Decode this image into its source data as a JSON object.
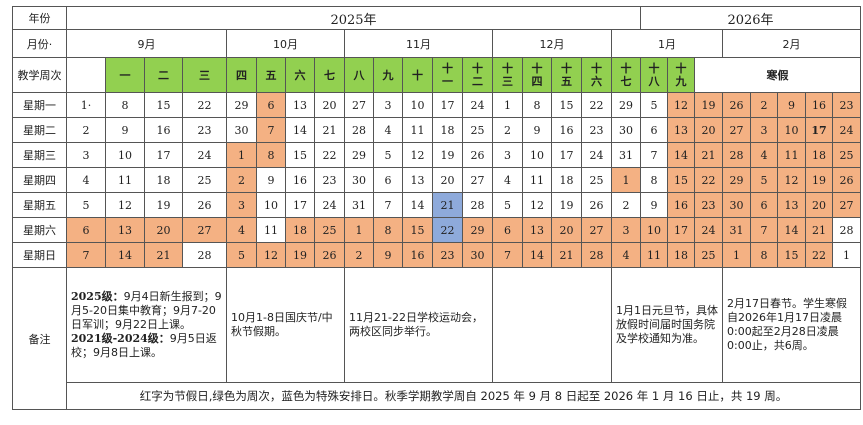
{
  "header": {
    "year_label": "年份",
    "month_label": "月份·",
    "week_label": "教学周次",
    "years": [
      "2025年",
      "2026年"
    ],
    "months": [
      "9月",
      "10月",
      "11月",
      "12月",
      "1月",
      "2月"
    ],
    "weeks": [
      "一",
      "二",
      "三",
      "四",
      "五",
      "六",
      "七",
      "八",
      "九",
      "十",
      "十\n一",
      "十\n二",
      "十\n三",
      "十\n四",
      "十\n五",
      "十\n六",
      "十\n七",
      "十\n八",
      "十\n九"
    ],
    "winter_break": "寒假"
  },
  "rows": [
    {
      "label": "星期一",
      "cells": [
        "1·",
        "8",
        "15",
        "22",
        "29",
        "6",
        "13",
        "20",
        "27",
        "3",
        "10",
        "17",
        "24",
        "1",
        "8",
        "15",
        "22",
        "29",
        "5",
        "12",
        "19",
        "26",
        "2",
        "9",
        "16",
        "23"
      ]
    },
    {
      "label": "星期二",
      "cells": [
        "2",
        "9",
        "16",
        "23",
        "30",
        "7",
        "14",
        "21",
        "28",
        "4",
        "11",
        "18",
        "25",
        "2",
        "9",
        "16",
        "23",
        "30",
        "6",
        "13",
        "20",
        "27",
        "3",
        "10",
        "17",
        "24"
      ]
    },
    {
      "label": "星期三",
      "cells": [
        "3",
        "10",
        "17",
        "24",
        "1",
        "8",
        "15",
        "22",
        "29",
        "5",
        "12",
        "19",
        "26",
        "3",
        "10",
        "17",
        "24",
        "31",
        "7",
        "14",
        "21",
        "28",
        "4",
        "11",
        "18",
        "25"
      ]
    },
    {
      "label": "星期四",
      "cells": [
        "4",
        "11",
        "18",
        "25",
        "2",
        "9",
        "16",
        "23",
        "30",
        "6",
        "13",
        "20",
        "27",
        "4",
        "11",
        "18",
        "25",
        "1",
        "8",
        "15",
        "22",
        "29",
        "5",
        "12",
        "19",
        "26"
      ]
    },
    {
      "label": "星期五",
      "cells": [
        "5",
        "12",
        "19",
        "26",
        "3",
        "10",
        "17",
        "24",
        "31",
        "7",
        "14",
        "21",
        "28",
        "5",
        "12",
        "19",
        "26",
        "2",
        "9",
        "16",
        "23",
        "30",
        "6",
        "13",
        "20",
        "27"
      ]
    },
    {
      "label": "星期六",
      "cells": [
        "6",
        "13",
        "20",
        "27",
        "4",
        "11",
        "18",
        "25",
        "1",
        "8",
        "15",
        "22",
        "29",
        "6",
        "13",
        "20",
        "27",
        "3",
        "10",
        "17",
        "24",
        "31",
        "7",
        "14",
        "21",
        "28"
      ]
    },
    {
      "label": "星期日",
      "cells": [
        "7",
        "14",
        "21",
        "28",
        "5",
        "12",
        "19",
        "26",
        "2",
        "9",
        "16",
        "23",
        "30",
        "7",
        "14",
        "21",
        "28",
        "4",
        "11",
        "18",
        "25",
        "1",
        "8",
        "15",
        "22",
        "1"
      ]
    }
  ],
  "highlight": {
    "orange": {
      "0": [
        5,
        19,
        20,
        21,
        22,
        23,
        24,
        25
      ],
      "1": [
        5,
        19,
        20,
        21,
        22,
        23,
        24,
        25
      ],
      "2": [
        4,
        5,
        19,
        20,
        21,
        22,
        23,
        24,
        25
      ],
      "3": [
        4,
        17,
        19,
        20,
        21,
        22,
        23,
        24,
        25
      ],
      "4": [
        4,
        19,
        20,
        21,
        22,
        23,
        24,
        25
      ],
      "5": [
        0,
        1,
        2,
        3,
        4,
        6,
        7,
        8,
        9,
        10,
        12,
        13,
        14,
        15,
        16,
        17,
        18,
        19,
        20,
        21,
        22,
        23,
        24
      ],
      "6": [
        0,
        1,
        2,
        4,
        5,
        6,
        7,
        8,
        9,
        10,
        11,
        12,
        13,
        14,
        15,
        16,
        17,
        18,
        19,
        20,
        21,
        22,
        23,
        24
      ]
    },
    "blue": {
      "4": [
        11
      ],
      "5": [
        11
      ]
    },
    "bold": {
      "1": [
        24
      ]
    },
    "colors": {
      "green": "#92d050",
      "orange": "#f4b183",
      "blue": "#8eaadb"
    }
  },
  "notes": {
    "label": "备注",
    "sep": {
      "g2025_title": "2025级：",
      "g2025_text": "9月4日新生报到；9月5-20日集中教育；9月7-20日军训；9月22日上课。",
      "g2021_title": "2021级-2024级：",
      "g2021_text": "9月5日返校；9月8日上课。"
    },
    "oct": "10月1-8日国庆节/中秋节假期。",
    "nov": "11月21-22日学校运动会，两校区同步举行。",
    "dec": "",
    "jan": "1月1日元旦节，具体放假时间届时国务院及学校通知为准。",
    "feb": "2月17日春节。学生寒假自2026年1月17日凌晨0:00起至2月28日凌晨0:00止，共6周。"
  },
  "footer": "红字为节假日,绿色为周次，蓝色为特殊安排日。秋季学期教学周自 2025 年 9 月 8 日起至 2026 年 1 月 16 日止，共 19 周。"
}
